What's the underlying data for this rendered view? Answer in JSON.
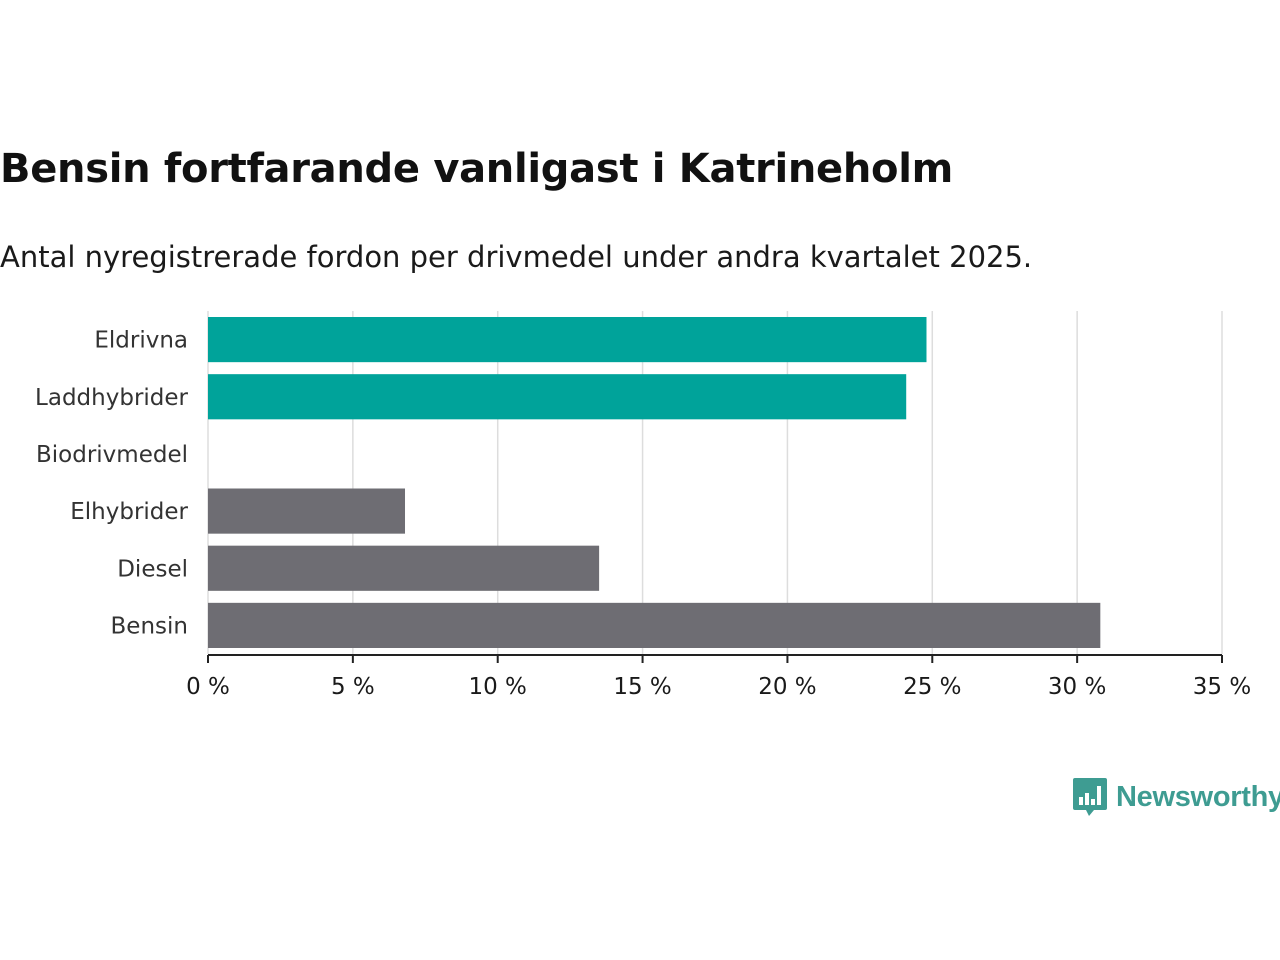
{
  "header": {
    "title": "Bensin fortfarande vanligast i Katrineholm",
    "subtitle": "Antal nyregistrerade fordon per drivmedel under andra kvartalet 2025."
  },
  "brand": {
    "name": "Newsworthy",
    "color": "#3e9c92",
    "icon": "bar-chart-speech-bubble-icon"
  },
  "chart_data": {
    "type": "bar",
    "orientation": "horizontal",
    "categories": [
      "Eldrivna",
      "Laddhybrider",
      "Biodrivmedel",
      "Elhybrider",
      "Diesel",
      "Bensin"
    ],
    "values": [
      24.8,
      24.1,
      0,
      6.8,
      13.5,
      30.8
    ],
    "colors": [
      "#00a39a",
      "#00a39a",
      "#00a39a",
      "#6e6d73",
      "#6e6d73",
      "#6e6d73"
    ],
    "xlim": [
      0,
      35
    ],
    "xticks": [
      0,
      5,
      10,
      15,
      20,
      25,
      30,
      35
    ],
    "xtick_labels": [
      "0 %",
      "5 %",
      "10 %",
      "15 %",
      "20 %",
      "25 %",
      "30 %",
      "35 %"
    ],
    "grid": true
  }
}
